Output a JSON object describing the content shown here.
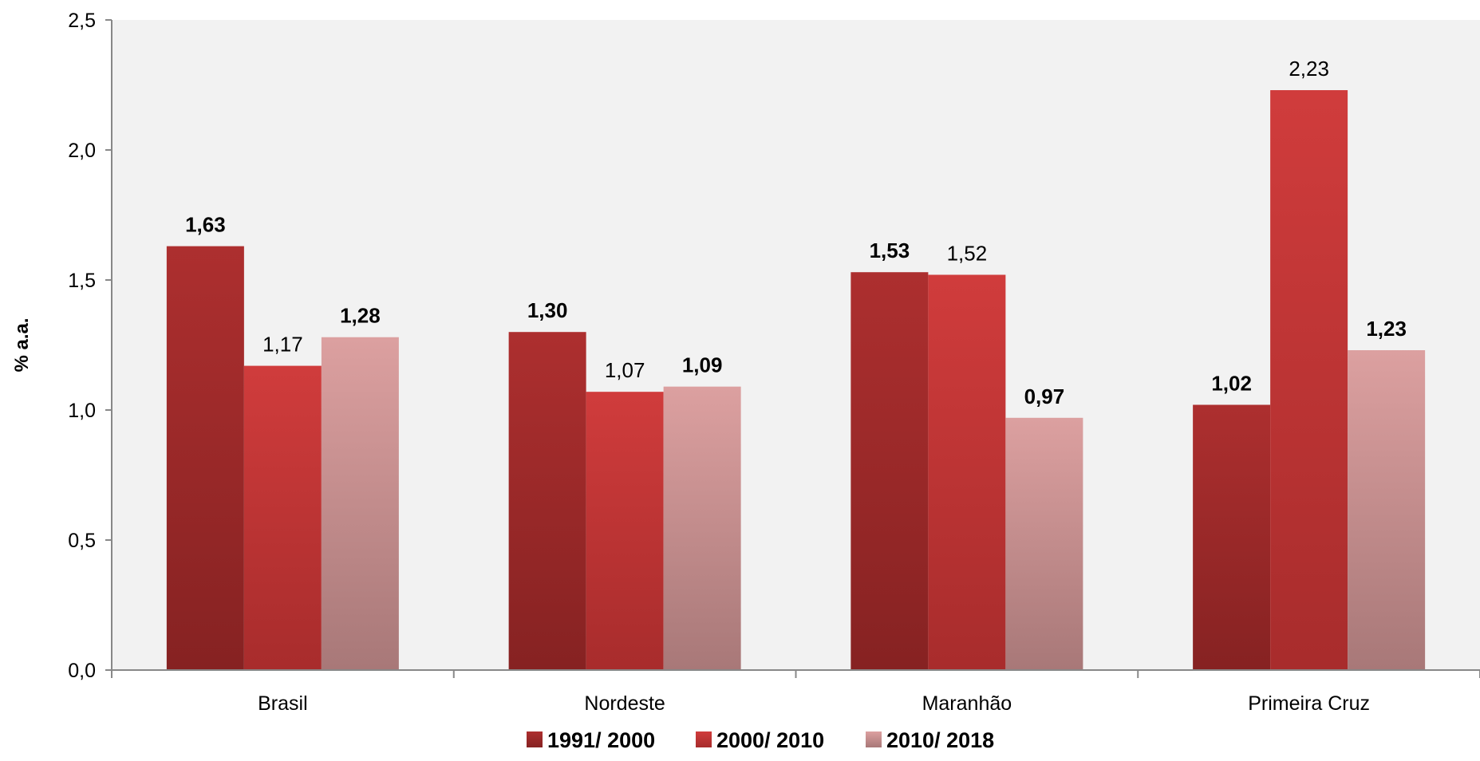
{
  "chart_data": {
    "type": "bar",
    "ylabel": "% a.a.",
    "xlabel": "",
    "ylim": [
      0,
      2.5
    ],
    "yticks": [
      "0,0",
      "0,5",
      "1,0",
      "1,5",
      "2,0",
      "2,5"
    ],
    "ytick_values": [
      0,
      0.5,
      1.0,
      1.5,
      2.0,
      2.5
    ],
    "categories": [
      "Brasil",
      "Nordeste",
      "Maranhão",
      "Primeira Cruz"
    ],
    "series": [
      {
        "name": "1991/ 2000",
        "values": [
          1.63,
          1.3,
          1.53,
          1.02
        ],
        "labels": [
          "1,63",
          "1,30",
          "1,53",
          "1,02"
        ],
        "label_bold": [
          true,
          true,
          true,
          true
        ],
        "color_top": "#ad2f2f",
        "color_bottom": "#862222"
      },
      {
        "name": "2000/ 2010",
        "values": [
          1.17,
          1.07,
          1.52,
          2.23
        ],
        "labels": [
          "1,17",
          "1,07",
          "1,52",
          "2,23"
        ],
        "label_bold": [
          false,
          false,
          false,
          false
        ],
        "color_top": "#d03c3c",
        "color_bottom": "#a82c2c"
      },
      {
        "name": "2010/ 2018",
        "values": [
          1.28,
          1.09,
          0.97,
          1.23
        ],
        "labels": [
          "1,28",
          "1,09",
          "0,97",
          "1,23"
        ],
        "label_bold": [
          true,
          true,
          true,
          true
        ],
        "color_top": "#dca0a0",
        "color_bottom": "#a87878"
      }
    ],
    "grid": false,
    "plot_background": "#f2f2f2",
    "legend_position": "bottom"
  }
}
